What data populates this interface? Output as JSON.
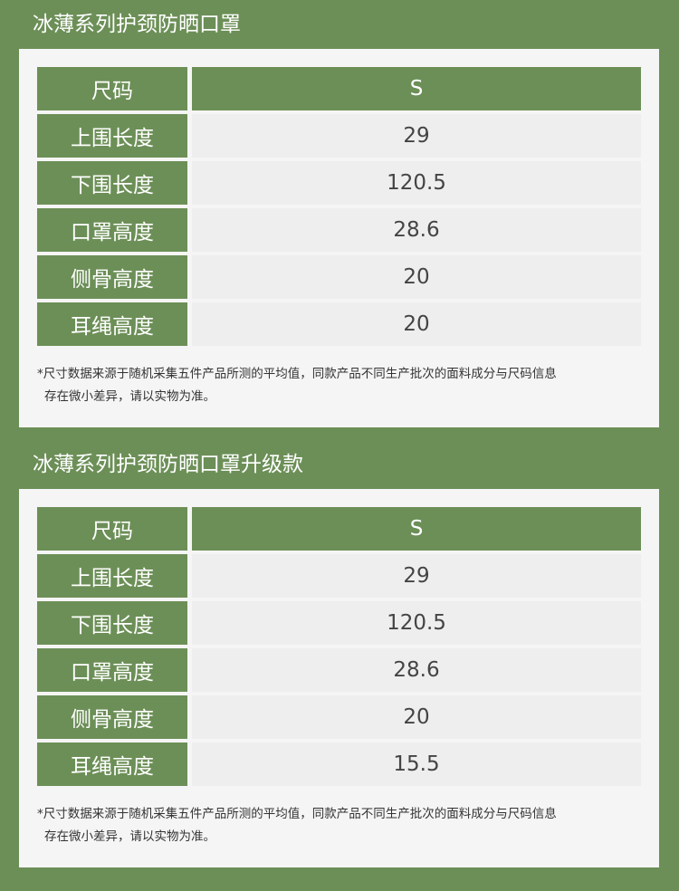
{
  "sections": [
    {
      "title": "冰薄系列护颈防晒口罩",
      "header": {
        "label": "尺码",
        "value": "S"
      },
      "rows": [
        {
          "label": "上围长度",
          "value": "29"
        },
        {
          "label": "下围长度",
          "value": "120.5"
        },
        {
          "label": "口罩高度",
          "value": "28.6"
        },
        {
          "label": "侧骨高度",
          "value": "20"
        },
        {
          "label": "耳绳高度",
          "value": "20"
        }
      ],
      "note_line1": "*尺寸数据来源于随机采集五件产品所测的平均值，同款产品不同生产批次的面料成分与尺码信息",
      "note_line2": "存在微小差异，请以实物为准。"
    },
    {
      "title": "冰薄系列护颈防晒口罩升级款",
      "header": {
        "label": "尺码",
        "value": "S"
      },
      "rows": [
        {
          "label": "上围长度",
          "value": "29"
        },
        {
          "label": "下围长度",
          "value": "120.5"
        },
        {
          "label": "口罩高度",
          "value": "28.6"
        },
        {
          "label": "侧骨高度",
          "value": "20"
        },
        {
          "label": "耳绳高度",
          "value": "15.5"
        }
      ],
      "note_line1": "*尺寸数据来源于随机采集五件产品所测的平均值，同款产品不同生产批次的面料成分与尺码信息",
      "note_line2": "存在微小差异，请以实物为准。"
    }
  ],
  "colors": {
    "brand_green": "#6c8f57",
    "panel": "#f5f5f5",
    "cell": "#eeeeee"
  }
}
